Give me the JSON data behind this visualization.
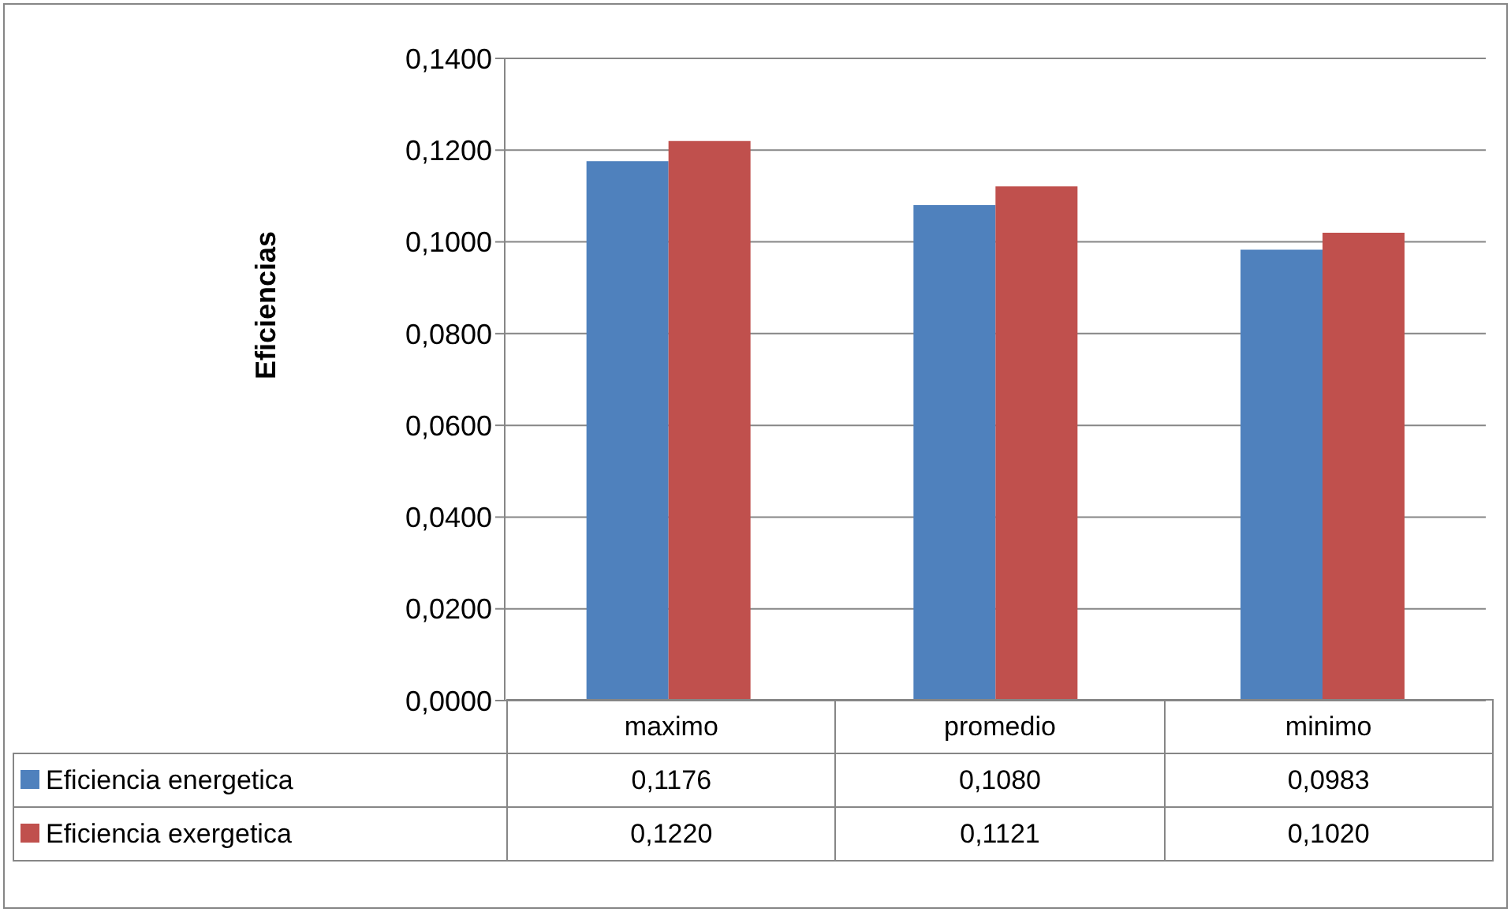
{
  "chart_data": {
    "type": "bar",
    "ylabel": "Eficiencias",
    "categories": [
      "maximo",
      "promedio",
      "minimo"
    ],
    "series": [
      {
        "name": "Eficiencia energetica",
        "color": "#4f81bd",
        "values": [
          0.1176,
          0.108,
          0.0983
        ],
        "value_labels": [
          "0,1176",
          "0,1080",
          "0,0983"
        ]
      },
      {
        "name": "Eficiencia exergetica",
        "color": "#c0504d",
        "values": [
          0.122,
          0.1121,
          0.102
        ],
        "value_labels": [
          "0,1220",
          "0,1121",
          "0,1020"
        ]
      }
    ],
    "ylim": [
      0,
      0.14
    ],
    "yticks": [
      {
        "value": 0,
        "label": "0,0000"
      },
      {
        "value": 0.02,
        "label": "0,0200"
      },
      {
        "value": 0.04,
        "label": "0,0400"
      },
      {
        "value": 0.06,
        "label": "0,0600"
      },
      {
        "value": 0.08,
        "label": "0,0800"
      },
      {
        "value": 0.1,
        "label": "0,1000"
      },
      {
        "value": 0.12,
        "label": "0,1200"
      },
      {
        "value": 0.14,
        "label": "0,1400"
      }
    ],
    "grid": "y",
    "legend": "bottom"
  }
}
